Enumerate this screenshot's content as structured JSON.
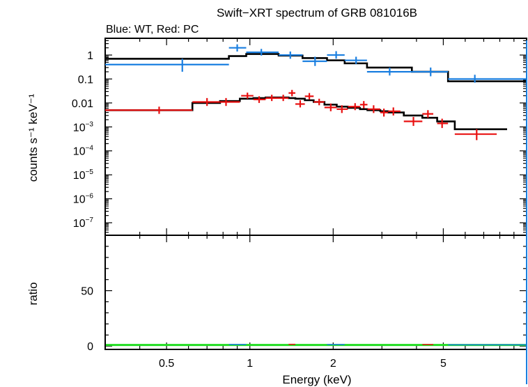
{
  "chart_data": [
    {
      "type": "scatter",
      "title": "Swift−XRT spectrum of GRB 081016B",
      "subtitle": "Blue: WT, Red: PC",
      "xlabel": "",
      "ylabel": "counts s⁻¹ keV⁻¹",
      "xscale": "log",
      "yscale": "log",
      "xlim": [
        0.3,
        10
      ],
      "ylim": [
        3e-08,
        5
      ],
      "ytick_labels": [
        {
          "v": 1,
          "base": "1",
          "exp": ""
        },
        {
          "v": 0.1,
          "base": "0.1",
          "exp": ""
        },
        {
          "v": 0.01,
          "base": "0.01",
          "exp": ""
        },
        {
          "v": 0.001,
          "base": "10",
          "exp": "−3"
        },
        {
          "v": 0.0001,
          "base": "10",
          "exp": "−4"
        },
        {
          "v": 1e-05,
          "base": "10",
          "exp": "−5"
        },
        {
          "v": 1e-06,
          "base": "10",
          "exp": "−6"
        },
        {
          "v": 1e-07,
          "base": "10",
          "exp": "−7"
        }
      ],
      "colors": {
        "wt": "#1a7fe0",
        "pc": "#e81010",
        "model": "#000000"
      },
      "series": [
        {
          "key": "wt",
          "points": [
            {
              "x": 0.57,
              "xlo": 0.3,
              "xhi": 0.84,
              "y": 0.4,
              "ylo": 0.2,
              "yhi": 0.7
            },
            {
              "x": 0.9,
              "xlo": 0.84,
              "xhi": 0.97,
              "y": 2.0,
              "ylo": 1.4,
              "yhi": 2.8
            },
            {
              "x": 1.1,
              "xlo": 0.97,
              "xhi": 1.27,
              "y": 1.3,
              "ylo": 0.95,
              "yhi": 1.8
            },
            {
              "x": 1.4,
              "xlo": 1.27,
              "xhi": 1.55,
              "y": 1.0,
              "ylo": 0.7,
              "yhi": 1.4
            },
            {
              "x": 1.72,
              "xlo": 1.55,
              "xhi": 1.9,
              "y": 0.55,
              "ylo": 0.35,
              "yhi": 0.85
            },
            {
              "x": 2.05,
              "xlo": 1.9,
              "xhi": 2.2,
              "y": 1.0,
              "ylo": 0.7,
              "yhi": 1.45
            },
            {
              "x": 2.42,
              "xlo": 2.2,
              "xhi": 2.65,
              "y": 0.6,
              "ylo": 0.42,
              "yhi": 0.85
            },
            {
              "x": 3.2,
              "xlo": 2.65,
              "xhi": 3.85,
              "y": 0.2,
              "ylo": 0.14,
              "yhi": 0.3
            },
            {
              "x": 4.5,
              "xlo": 3.85,
              "xhi": 5.2,
              "y": 0.2,
              "ylo": 0.13,
              "yhi": 0.3
            },
            {
              "x": 6.5,
              "xlo": 5.2,
              "xhi": 10.0,
              "y": 0.1,
              "ylo": 0.07,
              "yhi": 0.15
            }
          ]
        },
        {
          "key": "pc",
          "points": [
            {
              "x": 0.47,
              "xlo": 0.3,
              "xhi": 0.62,
              "y": 0.005,
              "ylo": 0.0035,
              "yhi": 0.007
            },
            {
              "x": 0.7,
              "xlo": 0.62,
              "xhi": 0.78,
              "y": 0.011,
              "ylo": 0.0075,
              "yhi": 0.016
            },
            {
              "x": 0.82,
              "xlo": 0.78,
              "xhi": 0.92,
              "y": 0.011,
              "ylo": 0.0075,
              "yhi": 0.016
            },
            {
              "x": 0.98,
              "xlo": 0.93,
              "xhi": 1.03,
              "y": 0.02,
              "ylo": 0.015,
              "yhi": 0.027
            },
            {
              "x": 1.08,
              "xlo": 1.03,
              "xhi": 1.14,
              "y": 0.014,
              "ylo": 0.01,
              "yhi": 0.019
            },
            {
              "x": 1.2,
              "xlo": 1.14,
              "xhi": 1.26,
              "y": 0.016,
              "ylo": 0.012,
              "yhi": 0.022
            },
            {
              "x": 1.32,
              "xlo": 1.26,
              "xhi": 1.38,
              "y": 0.016,
              "ylo": 0.012,
              "yhi": 0.022
            },
            {
              "x": 1.42,
              "xlo": 1.38,
              "xhi": 1.46,
              "y": 0.026,
              "ylo": 0.019,
              "yhi": 0.035
            },
            {
              "x": 1.52,
              "xlo": 1.46,
              "xhi": 1.58,
              "y": 0.009,
              "ylo": 0.0065,
              "yhi": 0.013
            },
            {
              "x": 1.64,
              "xlo": 1.58,
              "xhi": 1.7,
              "y": 0.019,
              "ylo": 0.014,
              "yhi": 0.026
            },
            {
              "x": 1.78,
              "xlo": 1.7,
              "xhi": 1.86,
              "y": 0.011,
              "ylo": 0.008,
              "yhi": 0.015
            },
            {
              "x": 1.96,
              "xlo": 1.86,
              "xhi": 2.06,
              "y": 0.0065,
              "ylo": 0.0045,
              "yhi": 0.0095
            },
            {
              "x": 2.15,
              "xlo": 2.06,
              "xhi": 2.26,
              "y": 0.0055,
              "ylo": 0.0038,
              "yhi": 0.008
            },
            {
              "x": 2.4,
              "xlo": 2.26,
              "xhi": 2.5,
              "y": 0.007,
              "ylo": 0.005,
              "yhi": 0.0098
            },
            {
              "x": 2.58,
              "xlo": 2.5,
              "xhi": 2.66,
              "y": 0.0085,
              "ylo": 0.006,
              "yhi": 0.012
            },
            {
              "x": 2.8,
              "xlo": 2.66,
              "xhi": 2.96,
              "y": 0.0055,
              "ylo": 0.0038,
              "yhi": 0.008
            },
            {
              "x": 3.05,
              "xlo": 2.96,
              "xhi": 3.16,
              "y": 0.004,
              "ylo": 0.0027,
              "yhi": 0.0058
            },
            {
              "x": 3.3,
              "xlo": 3.16,
              "xhi": 3.5,
              "y": 0.0045,
              "ylo": 0.003,
              "yhi": 0.0065
            },
            {
              "x": 3.9,
              "xlo": 3.6,
              "xhi": 4.2,
              "y": 0.0017,
              "ylo": 0.0011,
              "yhi": 0.0026
            },
            {
              "x": 4.4,
              "xlo": 4.2,
              "xhi": 4.6,
              "y": 0.0035,
              "ylo": 0.0024,
              "yhi": 0.005
            },
            {
              "x": 4.95,
              "xlo": 4.75,
              "xhi": 5.2,
              "y": 0.0014,
              "ylo": 0.0009,
              "yhi": 0.0022
            },
            {
              "x": 6.6,
              "xlo": 5.5,
              "xhi": 7.8,
              "y": 0.0005,
              "ylo": 0.00028,
              "yhi": 0.0008
            }
          ]
        }
      ],
      "models": [
        {
          "key": "model",
          "steps": [
            {
              "xlo": 0.3,
              "xhi": 0.84,
              "y": 0.7
            },
            {
              "xlo": 0.84,
              "xhi": 0.97,
              "y": 0.9
            },
            {
              "xlo": 0.97,
              "xhi": 1.27,
              "y": 1.1
            },
            {
              "xlo": 1.27,
              "xhi": 1.55,
              "y": 0.95
            },
            {
              "xlo": 1.55,
              "xhi": 1.9,
              "y": 0.75
            },
            {
              "xlo": 1.9,
              "xhi": 2.2,
              "y": 0.6
            },
            {
              "xlo": 2.2,
              "xhi": 2.65,
              "y": 0.45
            },
            {
              "xlo": 2.65,
              "xhi": 3.85,
              "y": 0.3
            },
            {
              "xlo": 3.85,
              "xhi": 5.2,
              "y": 0.2
            },
            {
              "xlo": 5.2,
              "xhi": 10.0,
              "y": 0.08
            }
          ]
        },
        {
          "key": "model",
          "steps": [
            {
              "xlo": 0.3,
              "xhi": 0.62,
              "y": 0.005
            },
            {
              "xlo": 0.62,
              "xhi": 0.78,
              "y": 0.01
            },
            {
              "xlo": 0.78,
              "xhi": 0.92,
              "y": 0.012
            },
            {
              "xlo": 0.92,
              "xhi": 1.03,
              "y": 0.015
            },
            {
              "xlo": 1.03,
              "xhi": 1.14,
              "y": 0.016
            },
            {
              "xlo": 1.14,
              "xhi": 1.26,
              "y": 0.017
            },
            {
              "xlo": 1.26,
              "xhi": 1.38,
              "y": 0.017
            },
            {
              "xlo": 1.38,
              "xhi": 1.46,
              "y": 0.016
            },
            {
              "xlo": 1.46,
              "xhi": 1.58,
              "y": 0.015
            },
            {
              "xlo": 1.58,
              "xhi": 1.7,
              "y": 0.013
            },
            {
              "xlo": 1.7,
              "xhi": 1.86,
              "y": 0.011
            },
            {
              "xlo": 1.86,
              "xhi": 2.06,
              "y": 0.0085
            },
            {
              "xlo": 2.06,
              "xhi": 2.26,
              "y": 0.007
            },
            {
              "xlo": 2.26,
              "xhi": 2.5,
              "y": 0.0062
            },
            {
              "xlo": 2.5,
              "xhi": 2.66,
              "y": 0.0055
            },
            {
              "xlo": 2.66,
              "xhi": 2.96,
              "y": 0.005
            },
            {
              "xlo": 2.96,
              "xhi": 3.16,
              "y": 0.0045
            },
            {
              "xlo": 3.16,
              "xhi": 3.6,
              "y": 0.004
            },
            {
              "xlo": 3.6,
              "xhi": 4.2,
              "y": 0.003
            },
            {
              "xlo": 4.2,
              "xhi": 4.75,
              "y": 0.0024
            },
            {
              "xlo": 4.75,
              "xhi": 5.5,
              "y": 0.0017
            },
            {
              "xlo": 5.5,
              "xhi": 8.5,
              "y": 0.0008
            }
          ]
        }
      ]
    },
    {
      "type": "scatter",
      "title": "",
      "xlabel": "Energy (keV)",
      "ylabel": "ratio",
      "xscale": "log",
      "xlim": [
        0.3,
        10
      ],
      "ylim": [
        -3,
        100
      ],
      "ytick_labels": [
        {
          "v": 0,
          "text": "0"
        },
        {
          "v": 50,
          "text": "50"
        }
      ],
      "xtick_labels": [
        {
          "v": 0.5,
          "text": "0.5"
        },
        {
          "v": 1,
          "text": "1"
        },
        {
          "v": 2,
          "text": "2"
        },
        {
          "v": 5,
          "text": "5"
        }
      ],
      "reference_line": {
        "y": 1,
        "color": "#22dd22"
      },
      "series": [
        {
          "key": "wt",
          "points": [
            {
              "x": 0.9,
              "xlo": 0.84,
              "xhi": 0.97,
              "y": 1.5
            },
            {
              "x": 2.05,
              "xlo": 1.9,
              "xhi": 2.2,
              "y": 1.4
            },
            {
              "x": 6.5,
              "xlo": 5.2,
              "xhi": 10.0,
              "y": 1.2
            }
          ]
        },
        {
          "key": "pc",
          "points": [
            {
              "x": 1.42,
              "xlo": 1.38,
              "xhi": 1.46,
              "y": 1.6
            },
            {
              "x": 4.4,
              "xlo": 4.2,
              "xhi": 4.6,
              "y": 1.4
            }
          ]
        }
      ]
    }
  ]
}
